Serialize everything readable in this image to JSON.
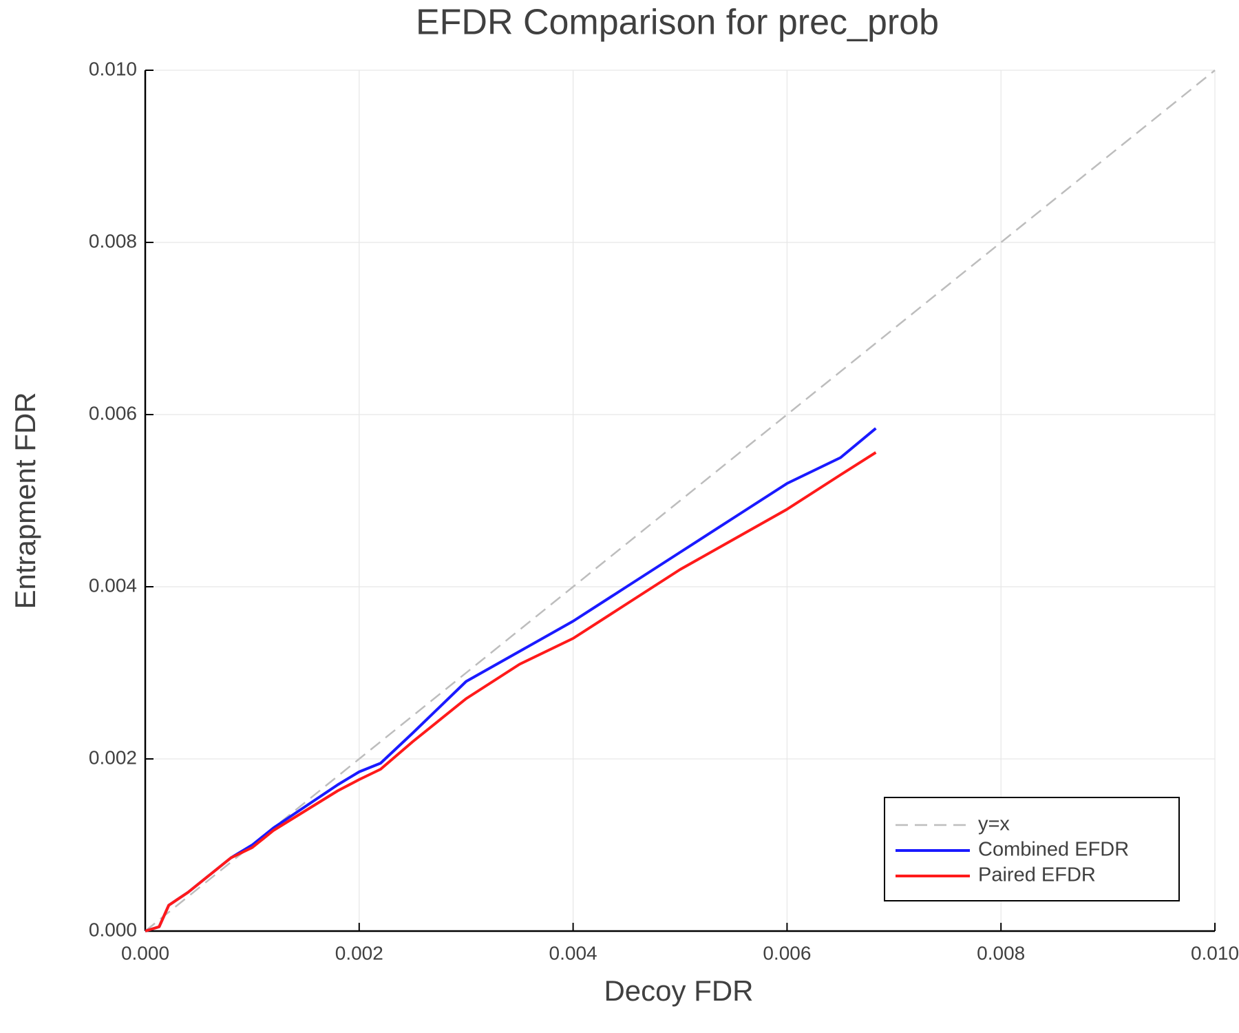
{
  "chart_data": {
    "type": "line",
    "title": "EFDR Comparison for prec_prob",
    "xlabel": "Decoy FDR",
    "ylabel": "Entrapment FDR",
    "xlim": [
      0,
      0.01
    ],
    "ylim": [
      0,
      0.01
    ],
    "xticks": [
      {
        "value": 0,
        "label": "0.000"
      },
      {
        "value": 0.002,
        "label": "0.002"
      },
      {
        "value": 0.004,
        "label": "0.004"
      },
      {
        "value": 0.006,
        "label": "0.006"
      },
      {
        "value": 0.008,
        "label": "0.008"
      },
      {
        "value": 0.01,
        "label": "0.010"
      }
    ],
    "yticks": [
      {
        "value": 0,
        "label": "0.000"
      },
      {
        "value": 0.002,
        "label": "0.002"
      },
      {
        "value": 0.004,
        "label": "0.004"
      },
      {
        "value": 0.006,
        "label": "0.006"
      },
      {
        "value": 0.008,
        "label": "0.008"
      },
      {
        "value": 0.01,
        "label": "0.010"
      }
    ],
    "grid": true,
    "legend": "lower right",
    "series": [
      {
        "name": "y=x",
        "color": "#bdbdbd",
        "dashed": true,
        "x": [
          0,
          0.01
        ],
        "values": [
          0,
          0.01
        ]
      },
      {
        "name": "Combined EFDR",
        "color": "#1a1aff",
        "x": [
          0,
          0.00013,
          0.00022,
          0.0004,
          0.0006,
          0.0008,
          0.001,
          0.0012,
          0.0015,
          0.0018,
          0.002,
          0.0022,
          0.0025,
          0.003,
          0.0035,
          0.004,
          0.0045,
          0.005,
          0.0055,
          0.006,
          0.0065,
          0.00683
        ],
        "values": [
          0,
          5e-05,
          0.0003,
          0.00045,
          0.00065,
          0.00085,
          0.001,
          0.0012,
          0.00145,
          0.0017,
          0.00185,
          0.00195,
          0.0023,
          0.0029,
          0.00325,
          0.0036,
          0.004,
          0.0044,
          0.0048,
          0.0052,
          0.0055,
          0.00584
        ]
      },
      {
        "name": "Paired EFDR",
        "color": "#ff1a1a",
        "x": [
          0,
          0.00013,
          0.00022,
          0.0004,
          0.0006,
          0.0008,
          0.001,
          0.0012,
          0.0015,
          0.0018,
          0.002,
          0.0022,
          0.0025,
          0.003,
          0.0035,
          0.004,
          0.0045,
          0.005,
          0.0055,
          0.006,
          0.0065,
          0.00683
        ],
        "values": [
          0,
          5e-05,
          0.0003,
          0.00045,
          0.00065,
          0.00085,
          0.00097,
          0.00117,
          0.0014,
          0.00163,
          0.00176,
          0.00188,
          0.0022,
          0.0027,
          0.0031,
          0.0034,
          0.0038,
          0.0042,
          0.00455,
          0.0049,
          0.0053,
          0.00556
        ]
      }
    ]
  }
}
